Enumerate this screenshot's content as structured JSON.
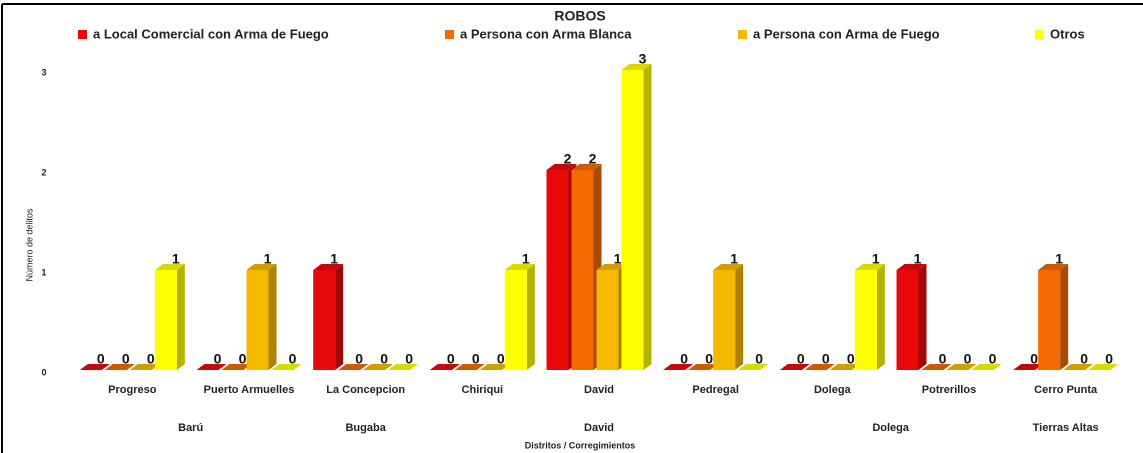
{
  "chart_data": {
    "type": "bar3d",
    "title": "ROBOS",
    "x_label": "Distritos / Corregimientos",
    "y_label": "Número de delitos",
    "categories": [
      "Progreso",
      "Puerto Armuelles",
      "La Concepcion",
      "Chiriqui",
      "David",
      "Pedregal",
      "Dolega",
      "Potrerillos",
      "Cerro Punta"
    ],
    "groups": [
      {
        "name": "Barú",
        "categories": [
          "Progreso",
          "Puerto Armuelles"
        ]
      },
      {
        "name": "Bugaba",
        "categories": [
          "La Concepcion"
        ]
      },
      {
        "name": "David",
        "categories": [
          "Chiriqui",
          "David",
          "Pedregal"
        ]
      },
      {
        "name": "Dolega",
        "categories": [
          "Dolega",
          "Potrerillos"
        ]
      },
      {
        "name": "Tierras Altas",
        "categories": [
          "Cerro Punta"
        ]
      }
    ],
    "series": [
      {
        "name": "a Local Comercial con Arma de Fuego",
        "color": "#e80a0a",
        "values": [
          0,
          0,
          1,
          0,
          2,
          0,
          0,
          1,
          0
        ]
      },
      {
        "name": "a Persona con Arma Blanca",
        "color": "#f26a00",
        "values": [
          0,
          0,
          0,
          0,
          2,
          0,
          0,
          0,
          1
        ]
      },
      {
        "name": "a Persona con Arma de Fuego",
        "color": "#f7b900",
        "values": [
          0,
          1,
          0,
          0,
          1,
          1,
          0,
          0,
          0
        ]
      },
      {
        "name": "Otros",
        "color": "#ffff00",
        "values": [
          1,
          0,
          0,
          1,
          3,
          0,
          1,
          0,
          0
        ]
      }
    ],
    "ylim": [
      0,
      3.4
    ],
    "yticks": [
      0,
      1,
      2,
      3
    ],
    "legend": "top",
    "data_labels": true
  }
}
